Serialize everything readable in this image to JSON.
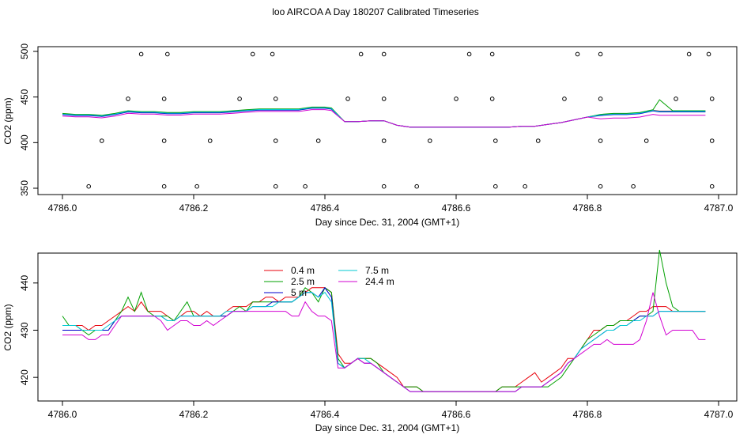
{
  "chart_data": [
    {
      "type": "scatter",
      "title": "loo AIRCOA A  Day 180207  Calibrated Timeseries",
      "xlabel": "Day since Dec. 31, 2004 (GMT+1)",
      "ylabel": "CO2 (ppm)",
      "xlim": [
        4786.0,
        4787.0
      ],
      "ylim": [
        350,
        500
      ],
      "xticks": [
        "4786.0",
        "4786.2",
        "4786.4",
        "4786.6",
        "4786.8",
        "4787.0"
      ],
      "yticks": [
        "350",
        "400",
        "450",
        "500"
      ],
      "series_colors": [
        "#e8000b",
        "#00a000",
        "#0000cc",
        "#00c8d2",
        "#d200d2"
      ],
      "lines": [
        {
          "x": [
            4786.0,
            4786.02,
            4786.04,
            4786.06,
            4786.08,
            4786.1,
            4786.12,
            4786.14,
            4786.16,
            4786.18,
            4786.2,
            4786.22,
            4786.24,
            4786.26,
            4786.28,
            4786.3,
            4786.32,
            4786.34,
            4786.36,
            4786.38,
            4786.4,
            4786.41,
            4786.43,
            4786.45,
            4786.47,
            4786.49,
            4786.51,
            4786.53,
            4786.55,
            4786.57,
            4786.6,
            4786.63,
            4786.66,
            4786.68,
            4786.7,
            4786.72,
            4786.74,
            4786.76,
            4786.78,
            4786.8,
            4786.82,
            4786.84,
            4786.86,
            4786.88,
            4786.9,
            4786.91,
            4786.93,
            4786.95,
            4786.97,
            4786.98
          ],
          "y": [
            431,
            430,
            430,
            429,
            431,
            434,
            433,
            433,
            432,
            432,
            433,
            433,
            433,
            434,
            435,
            436,
            436,
            436,
            436,
            438,
            438,
            437,
            423,
            423,
            424,
            424,
            419,
            417,
            417,
            417,
            417,
            417,
            417,
            417,
            418,
            418,
            420,
            422,
            425,
            428,
            430,
            431,
            431,
            432,
            435,
            434,
            434,
            434,
            434,
            434
          ]
        }
      ],
      "points": [
        {
          "x": 4786.04,
          "y": 352
        },
        {
          "x": 4786.155,
          "y": 352
        },
        {
          "x": 4786.205,
          "y": 352
        },
        {
          "x": 4786.325,
          "y": 352
        },
        {
          "x": 4786.37,
          "y": 352
        },
        {
          "x": 4786.49,
          "y": 352
        },
        {
          "x": 4786.54,
          "y": 352
        },
        {
          "x": 4786.66,
          "y": 352
        },
        {
          "x": 4786.705,
          "y": 352
        },
        {
          "x": 4786.82,
          "y": 352
        },
        {
          "x": 4786.87,
          "y": 352
        },
        {
          "x": 4786.99,
          "y": 352
        },
        {
          "x": 4786.06,
          "y": 402
        },
        {
          "x": 4786.155,
          "y": 402
        },
        {
          "x": 4786.225,
          "y": 402
        },
        {
          "x": 4786.325,
          "y": 402
        },
        {
          "x": 4786.39,
          "y": 402
        },
        {
          "x": 4786.49,
          "y": 402
        },
        {
          "x": 4786.56,
          "y": 402
        },
        {
          "x": 4786.66,
          "y": 402
        },
        {
          "x": 4786.725,
          "y": 402
        },
        {
          "x": 4786.82,
          "y": 402
        },
        {
          "x": 4786.89,
          "y": 402
        },
        {
          "x": 4786.99,
          "y": 402
        },
        {
          "x": 4786.1,
          "y": 448
        },
        {
          "x": 4786.155,
          "y": 448
        },
        {
          "x": 4786.27,
          "y": 448
        },
        {
          "x": 4786.325,
          "y": 448
        },
        {
          "x": 4786.435,
          "y": 448
        },
        {
          "x": 4786.49,
          "y": 448
        },
        {
          "x": 4786.6,
          "y": 448
        },
        {
          "x": 4786.655,
          "y": 448
        },
        {
          "x": 4786.765,
          "y": 448
        },
        {
          "x": 4786.82,
          "y": 448
        },
        {
          "x": 4786.935,
          "y": 448
        },
        {
          "x": 4786.99,
          "y": 448
        },
        {
          "x": 4786.12,
          "y": 497
        },
        {
          "x": 4786.16,
          "y": 497
        },
        {
          "x": 4786.29,
          "y": 497
        },
        {
          "x": 4786.32,
          "y": 497
        },
        {
          "x": 4786.455,
          "y": 497
        },
        {
          "x": 4786.49,
          "y": 497
        },
        {
          "x": 4786.62,
          "y": 497
        },
        {
          "x": 4786.655,
          "y": 497
        },
        {
          "x": 4786.785,
          "y": 497
        },
        {
          "x": 4786.82,
          "y": 497
        },
        {
          "x": 4786.955,
          "y": 497
        },
        {
          "x": 4786.985,
          "y": 497
        }
      ]
    },
    {
      "type": "line",
      "xlabel": "Day since Dec. 31, 2004 (GMT+1)",
      "ylabel": "CO2 (ppm)",
      "xlim": [
        4786.0,
        4787.0
      ],
      "ylim": [
        415,
        446
      ],
      "xticks": [
        "4786.0",
        "4786.2",
        "4786.4",
        "4786.6",
        "4786.8",
        "4787.0"
      ],
      "yticks": [
        "420",
        "430",
        "440"
      ],
      "x": [
        4786.0,
        4786.01,
        4786.02,
        4786.03,
        4786.04,
        4786.05,
        4786.06,
        4786.07,
        4786.08,
        4786.09,
        4786.1,
        4786.11,
        4786.12,
        4786.13,
        4786.14,
        4786.15,
        4786.16,
        4786.17,
        4786.18,
        4786.19,
        4786.2,
        4786.21,
        4786.22,
        4786.23,
        4786.24,
        4786.25,
        4786.26,
        4786.27,
        4786.28,
        4786.29,
        4786.3,
        4786.31,
        4786.32,
        4786.33,
        4786.34,
        4786.35,
        4786.36,
        4786.37,
        4786.38,
        4786.39,
        4786.4,
        4786.41,
        4786.42,
        4786.43,
        4786.44,
        4786.45,
        4786.46,
        4786.47,
        4786.48,
        4786.49,
        4786.5,
        4786.51,
        4786.52,
        4786.53,
        4786.54,
        4786.55,
        4786.56,
        4786.57,
        4786.58,
        4786.59,
        4786.6,
        4786.61,
        4786.62,
        4786.63,
        4786.64,
        4786.65,
        4786.66,
        4786.67,
        4786.68,
        4786.69,
        4786.7,
        4786.71,
        4786.72,
        4786.73,
        4786.74,
        4786.75,
        4786.76,
        4786.77,
        4786.78,
        4786.79,
        4786.8,
        4786.81,
        4786.82,
        4786.83,
        4786.84,
        4786.85,
        4786.86,
        4786.87,
        4786.88,
        4786.89,
        4786.9,
        4786.91,
        4786.92,
        4786.93,
        4786.94,
        4786.95,
        4786.96,
        4786.97,
        4786.98
      ],
      "series": [
        {
          "name": "0.4 m",
          "color": "#e8000b",
          "values": [
            431,
            431,
            431,
            431,
            430,
            431,
            431,
            432,
            433,
            434,
            435,
            434,
            436,
            434,
            434,
            434,
            433,
            432,
            433,
            434,
            434,
            433,
            434,
            433,
            433,
            434,
            435,
            435,
            435,
            436,
            436,
            437,
            437,
            436,
            437,
            437,
            437,
            438,
            439,
            439,
            439,
            438,
            425,
            423,
            423,
            424,
            424,
            424,
            423,
            422,
            421,
            420,
            418,
            418,
            418,
            417,
            417,
            417,
            417,
            417,
            417,
            417,
            417,
            417,
            417,
            417,
            417,
            418,
            418,
            418,
            419,
            420,
            421,
            419,
            420,
            421,
            422,
            424,
            424,
            426,
            428,
            430,
            430,
            431,
            431,
            432,
            432,
            433,
            434,
            434,
            435,
            435,
            435,
            434,
            434,
            434,
            434,
            434,
            434
          ]
        },
        {
          "name": "2.5 m",
          "color": "#00a000",
          "values": [
            433,
            431,
            431,
            430,
            429,
            430,
            430,
            430,
            432,
            434,
            437,
            434,
            438,
            434,
            433,
            433,
            433,
            432,
            434,
            436,
            433,
            433,
            433,
            433,
            433,
            433,
            434,
            435,
            434,
            436,
            436,
            436,
            436,
            436,
            436,
            436,
            437,
            439,
            438,
            436,
            439,
            438,
            424,
            422,
            423,
            424,
            424,
            424,
            423,
            421,
            420,
            419,
            418,
            418,
            418,
            417,
            417,
            417,
            417,
            417,
            417,
            417,
            417,
            417,
            417,
            417,
            417,
            418,
            418,
            418,
            418,
            418,
            418,
            418,
            418,
            419,
            420,
            422,
            424,
            426,
            428,
            429,
            430,
            431,
            431,
            432,
            432,
            432,
            433,
            433,
            434,
            447,
            440,
            435,
            434,
            434,
            434,
            434,
            434
          ]
        },
        {
          "name": "5 m",
          "color": "#0000cc",
          "values": [
            430,
            430,
            430,
            430,
            430,
            430,
            430,
            430,
            432,
            433,
            433,
            433,
            433,
            433,
            433,
            433,
            432,
            432,
            433,
            433,
            433,
            433,
            433,
            433,
            433,
            433,
            434,
            434,
            434,
            435,
            435,
            435,
            436,
            436,
            436,
            436,
            437,
            438,
            438,
            437,
            439,
            437,
            423,
            422,
            423,
            424,
            423,
            423,
            422,
            421,
            420,
            419,
            418,
            417,
            417,
            417,
            417,
            417,
            417,
            417,
            417,
            417,
            417,
            417,
            417,
            417,
            417,
            417,
            417,
            417,
            418,
            418,
            418,
            418,
            419,
            420,
            421,
            423,
            424,
            426,
            427,
            428,
            429,
            430,
            430,
            431,
            431,
            432,
            433,
            433,
            433,
            434,
            434,
            434,
            434,
            434,
            434,
            434,
            434
          ]
        },
        {
          "name": "7.5 m",
          "color": "#00c8d2",
          "values": [
            431,
            431,
            431,
            430,
            430,
            430,
            430,
            431,
            432,
            433,
            433,
            433,
            433,
            433,
            433,
            433,
            432,
            432,
            433,
            433,
            433,
            433,
            433,
            433,
            433,
            434,
            434,
            434,
            434,
            435,
            435,
            435,
            435,
            436,
            436,
            436,
            437,
            438,
            438,
            437,
            438,
            436,
            423,
            422,
            423,
            424,
            424,
            423,
            422,
            421,
            420,
            419,
            418,
            417,
            417,
            417,
            417,
            417,
            417,
            417,
            417,
            417,
            417,
            417,
            417,
            417,
            417,
            417,
            417,
            417,
            418,
            418,
            418,
            418,
            419,
            420,
            421,
            423,
            424,
            426,
            427,
            428,
            429,
            430,
            430,
            431,
            431,
            432,
            432,
            433,
            433,
            434,
            434,
            434,
            434,
            434,
            434,
            434,
            434
          ]
        },
        {
          "name": "24.4 m",
          "color": "#d200d2",
          "values": [
            429,
            429,
            429,
            429,
            428,
            428,
            429,
            429,
            431,
            433,
            433,
            433,
            433,
            433,
            433,
            432,
            430,
            431,
            432,
            432,
            431,
            431,
            432,
            431,
            432,
            433,
            434,
            434,
            434,
            434,
            434,
            434,
            434,
            434,
            434,
            433,
            433,
            436,
            434,
            433,
            433,
            432,
            422,
            422,
            423,
            424,
            423,
            423,
            422,
            421,
            420,
            419,
            418,
            417,
            417,
            417,
            417,
            417,
            417,
            417,
            417,
            417,
            417,
            417,
            417,
            417,
            417,
            417,
            417,
            417,
            418,
            418,
            418,
            418,
            419,
            420,
            421,
            423,
            424,
            425,
            426,
            427,
            427,
            428,
            427,
            427,
            427,
            427,
            428,
            432,
            438,
            433,
            429,
            430,
            430,
            430,
            430,
            428,
            428
          ]
        }
      ],
      "legend": {
        "placement": "top-center",
        "columns": 2
      }
    }
  ]
}
